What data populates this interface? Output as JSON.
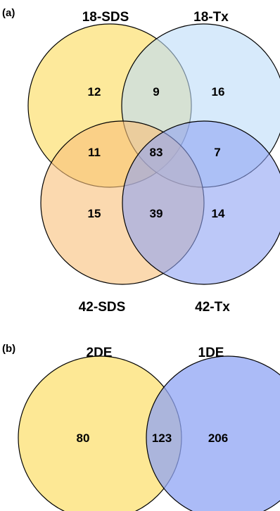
{
  "panel_a": {
    "label": "(a)",
    "sets": {
      "top_left": "18-SDS",
      "top_right": "18-Tx",
      "bottom_left": "42-SDS",
      "bottom_right": "42-Tx"
    },
    "regions": {
      "only_18_sds": "12",
      "sds18_tx18": "9",
      "only_18_tx": "16",
      "sds18_sds42": "11",
      "all_four": "83",
      "tx18_tx42": "7",
      "only_42_sds": "15",
      "sds42_tx42": "39",
      "only_42_tx": "14"
    }
  },
  "panel_b": {
    "label": "(b)",
    "sets": {
      "left": "2DE",
      "right": "1DE"
    },
    "regions": {
      "only_2de": "80",
      "both": "123",
      "only_1de": "206"
    }
  },
  "colors": {
    "yellow": "#fde58a",
    "light_blue": "#bcdcf8",
    "orange": "#f9c07a",
    "blue": "#8fa4f4",
    "stroke": "#000000"
  }
}
